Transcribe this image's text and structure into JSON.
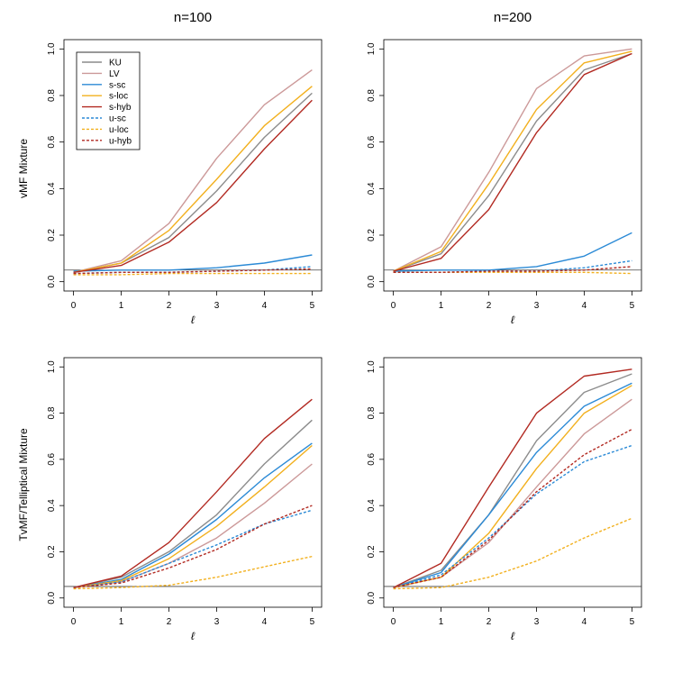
{
  "column_titles": [
    "n=100",
    "n=200"
  ],
  "row_labels": [
    "vMF Mixture",
    "TvMF/Telliptical Mixture"
  ],
  "colors": {
    "KU": "#8c8c8c",
    "LV": "#cc9999",
    "sc": "#2b8ad6",
    "loc": "#f2b01e",
    "hyb": "#b22a22",
    "reference": "#444444"
  },
  "legend": {
    "placement": "top-left",
    "entries": [
      {
        "label": "KU",
        "color": "#8c8c8c",
        "dashed": false
      },
      {
        "label": "LV",
        "color": "#cc9999",
        "dashed": false
      },
      {
        "label": "s-sc",
        "color": "#2b8ad6",
        "dashed": false
      },
      {
        "label": "s-loc",
        "color": "#f2b01e",
        "dashed": false
      },
      {
        "label": "s-hyb",
        "color": "#b22a22",
        "dashed": false
      },
      {
        "label": "u-sc",
        "color": "#2b8ad6",
        "dashed": true
      },
      {
        "label": "u-loc",
        "color": "#f2b01e",
        "dashed": true
      },
      {
        "label": "u-hyb",
        "color": "#b22a22",
        "dashed": true
      }
    ]
  },
  "chart_data": [
    {
      "type": "line",
      "column_title": "n=100",
      "ylabel": "vMF Mixture",
      "xlabel": "ℓ",
      "x": [
        0,
        1,
        2,
        3,
        4,
        5
      ],
      "xlim": [
        0,
        5
      ],
      "ylim": [
        0,
        1
      ],
      "xticks": [
        "0",
        "1",
        "2",
        "3",
        "4",
        "5"
      ],
      "yticks": [
        "0.0",
        "0.2",
        "0.4",
        "0.6",
        "0.8",
        "1.0"
      ],
      "reference_line": 0.05,
      "legend": true,
      "series": [
        {
          "name": "KU",
          "color": "#8c8c8c",
          "dashed": false,
          "values": [
            0.04,
            0.08,
            0.19,
            0.39,
            0.62,
            0.81
          ]
        },
        {
          "name": "LV",
          "color": "#cc9999",
          "dashed": false,
          "values": [
            0.04,
            0.09,
            0.25,
            0.53,
            0.76,
            0.91
          ]
        },
        {
          "name": "s-sc",
          "color": "#2b8ad6",
          "dashed": false,
          "values": [
            0.045,
            0.05,
            0.05,
            0.06,
            0.08,
            0.115
          ]
        },
        {
          "name": "s-loc",
          "color": "#f2b01e",
          "dashed": false,
          "values": [
            0.04,
            0.08,
            0.22,
            0.44,
            0.67,
            0.84
          ]
        },
        {
          "name": "s-hyb",
          "color": "#b22a22",
          "dashed": false,
          "values": [
            0.04,
            0.07,
            0.17,
            0.34,
            0.57,
            0.78
          ]
        },
        {
          "name": "u-sc",
          "color": "#2b8ad6",
          "dashed": true,
          "values": [
            0.035,
            0.04,
            0.04,
            0.045,
            0.05,
            0.065
          ]
        },
        {
          "name": "u-loc",
          "color": "#f2b01e",
          "dashed": true,
          "values": [
            0.03,
            0.03,
            0.035,
            0.035,
            0.035,
            0.035
          ]
        },
        {
          "name": "u-hyb",
          "color": "#b22a22",
          "dashed": true,
          "values": [
            0.035,
            0.04,
            0.04,
            0.045,
            0.05,
            0.055
          ]
        }
      ]
    },
    {
      "type": "line",
      "column_title": "n=200",
      "ylabel": "",
      "xlabel": "ℓ",
      "x": [
        0,
        1,
        2,
        3,
        4,
        5
      ],
      "xlim": [
        0,
        5
      ],
      "ylim": [
        0,
        1
      ],
      "xticks": [
        "0",
        "1",
        "2",
        "3",
        "4",
        "5"
      ],
      "yticks": [
        "0.0",
        "0.2",
        "0.4",
        "0.6",
        "0.8",
        "1.0"
      ],
      "reference_line": 0.05,
      "legend": false,
      "series": [
        {
          "name": "KU",
          "color": "#8c8c8c",
          "dashed": false,
          "values": [
            0.045,
            0.12,
            0.37,
            0.69,
            0.91,
            0.98
          ]
        },
        {
          "name": "LV",
          "color": "#cc9999",
          "dashed": false,
          "values": [
            0.045,
            0.15,
            0.47,
            0.83,
            0.97,
            1.0
          ]
        },
        {
          "name": "s-sc",
          "color": "#2b8ad6",
          "dashed": false,
          "values": [
            0.045,
            0.05,
            0.05,
            0.065,
            0.11,
            0.21
          ]
        },
        {
          "name": "s-loc",
          "color": "#f2b01e",
          "dashed": false,
          "values": [
            0.045,
            0.13,
            0.42,
            0.74,
            0.94,
            0.99
          ]
        },
        {
          "name": "s-hyb",
          "color": "#b22a22",
          "dashed": false,
          "values": [
            0.045,
            0.1,
            0.31,
            0.64,
            0.89,
            0.98
          ]
        },
        {
          "name": "u-sc",
          "color": "#2b8ad6",
          "dashed": true,
          "values": [
            0.04,
            0.04,
            0.045,
            0.045,
            0.06,
            0.09
          ]
        },
        {
          "name": "u-loc",
          "color": "#f2b01e",
          "dashed": true,
          "values": [
            0.04,
            0.04,
            0.04,
            0.04,
            0.04,
            0.035
          ]
        },
        {
          "name": "u-hyb",
          "color": "#b22a22",
          "dashed": true,
          "values": [
            0.04,
            0.04,
            0.045,
            0.045,
            0.05,
            0.065
          ]
        }
      ]
    },
    {
      "type": "line",
      "column_title": "",
      "ylabel": "TvMF/Telliptical Mixture",
      "xlabel": "ℓ",
      "x": [
        0,
        1,
        2,
        3,
        4,
        5
      ],
      "xlim": [
        0,
        5
      ],
      "ylim": [
        0,
        1
      ],
      "xticks": [
        "0",
        "1",
        "2",
        "3",
        "4",
        "5"
      ],
      "yticks": [
        "0.0",
        "0.2",
        "0.4",
        "0.6",
        "0.8",
        "1.0"
      ],
      "reference_line": 0.05,
      "legend": false,
      "series": [
        {
          "name": "KU",
          "color": "#8c8c8c",
          "dashed": false,
          "values": [
            0.045,
            0.09,
            0.2,
            0.36,
            0.58,
            0.77
          ]
        },
        {
          "name": "LV",
          "color": "#cc9999",
          "dashed": false,
          "values": [
            0.045,
            0.07,
            0.15,
            0.26,
            0.41,
            0.58
          ]
        },
        {
          "name": "s-sc",
          "color": "#2b8ad6",
          "dashed": false,
          "values": [
            0.045,
            0.08,
            0.19,
            0.34,
            0.52,
            0.67
          ]
        },
        {
          "name": "s-loc",
          "color": "#f2b01e",
          "dashed": false,
          "values": [
            0.045,
            0.075,
            0.17,
            0.31,
            0.48,
            0.66
          ]
        },
        {
          "name": "s-hyb",
          "color": "#b22a22",
          "dashed": false,
          "values": [
            0.045,
            0.095,
            0.24,
            0.46,
            0.69,
            0.86
          ]
        },
        {
          "name": "u-sc",
          "color": "#2b8ad6",
          "dashed": true,
          "values": [
            0.045,
            0.07,
            0.15,
            0.23,
            0.32,
            0.38
          ]
        },
        {
          "name": "u-loc",
          "color": "#f2b01e",
          "dashed": true,
          "values": [
            0.04,
            0.045,
            0.055,
            0.09,
            0.135,
            0.18
          ]
        },
        {
          "name": "u-hyb",
          "color": "#b22a22",
          "dashed": true,
          "values": [
            0.045,
            0.065,
            0.13,
            0.21,
            0.32,
            0.4
          ]
        }
      ]
    },
    {
      "type": "line",
      "column_title": "",
      "ylabel": "",
      "xlabel": "ℓ",
      "x": [
        0,
        1,
        2,
        3,
        4,
        5
      ],
      "xlim": [
        0,
        5
      ],
      "ylim": [
        0,
        1
      ],
      "xticks": [
        "0",
        "1",
        "2",
        "3",
        "4",
        "5"
      ],
      "yticks": [
        "0.0",
        "0.2",
        "0.4",
        "0.6",
        "0.8",
        "1.0"
      ],
      "reference_line": 0.05,
      "legend": false,
      "series": [
        {
          "name": "KU",
          "color": "#8c8c8c",
          "dashed": false,
          "values": [
            0.045,
            0.12,
            0.36,
            0.68,
            0.89,
            0.97
          ]
        },
        {
          "name": "LV",
          "color": "#cc9999",
          "dashed": false,
          "values": [
            0.045,
            0.09,
            0.24,
            0.48,
            0.71,
            0.86
          ]
        },
        {
          "name": "s-sc",
          "color": "#2b8ad6",
          "dashed": false,
          "values": [
            0.045,
            0.11,
            0.36,
            0.63,
            0.83,
            0.93
          ]
        },
        {
          "name": "s-loc",
          "color": "#f2b01e",
          "dashed": false,
          "values": [
            0.045,
            0.09,
            0.28,
            0.56,
            0.8,
            0.92
          ]
        },
        {
          "name": "s-hyb",
          "color": "#b22a22",
          "dashed": false,
          "values": [
            0.045,
            0.15,
            0.48,
            0.8,
            0.96,
            0.99
          ]
        },
        {
          "name": "u-sc",
          "color": "#2b8ad6",
          "dashed": true,
          "values": [
            0.045,
            0.1,
            0.26,
            0.45,
            0.59,
            0.66
          ]
        },
        {
          "name": "u-loc",
          "color": "#f2b01e",
          "dashed": true,
          "values": [
            0.04,
            0.045,
            0.09,
            0.16,
            0.26,
            0.345
          ]
        },
        {
          "name": "u-hyb",
          "color": "#b22a22",
          "dashed": true,
          "values": [
            0.045,
            0.09,
            0.25,
            0.46,
            0.62,
            0.73
          ]
        }
      ]
    }
  ]
}
